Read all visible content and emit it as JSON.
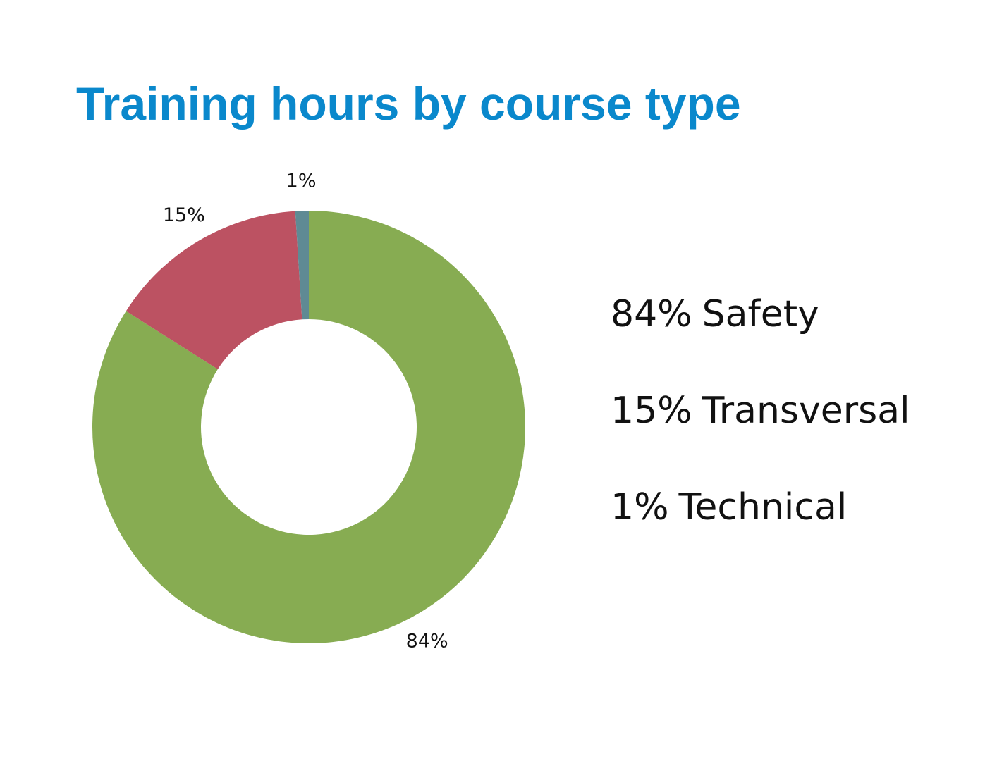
{
  "chart_data": {
    "type": "donut",
    "title": "Training hours by course type",
    "categories": [
      "Safety",
      "Transversal",
      "Technical"
    ],
    "values": [
      84,
      15,
      1
    ],
    "value_labels": [
      "84%",
      "15%",
      "1%"
    ],
    "colors": [
      "#87ac52",
      "#bc5262",
      "#5f8a94"
    ]
  }
}
